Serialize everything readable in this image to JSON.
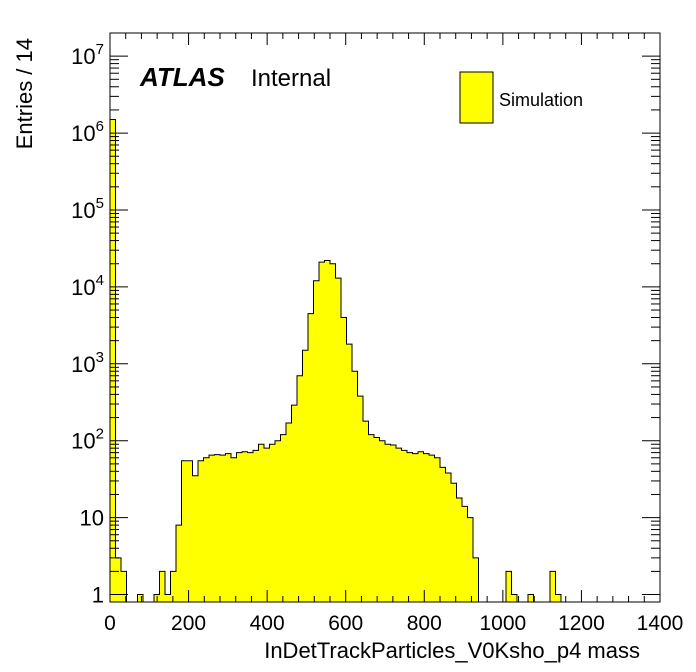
{
  "chart_data": {
    "type": "bar",
    "xlabel": "InDetTrackParticles_V0Ksho_p4 mass",
    "ylabel": "Entries / 14",
    "xlim": [
      0,
      1400
    ],
    "ylim": [
      0.8,
      20000000
    ],
    "yscale": "log",
    "bin_width": 14,
    "x_ticks": [
      "0",
      "200",
      "400",
      "600",
      "800",
      "1000",
      "1200",
      "1400"
    ],
    "y_ticks": [
      {
        "base": "1",
        "exp": "",
        "value": 1
      },
      {
        "base": "10",
        "exp": "",
        "value": 10
      },
      {
        "base": "10",
        "exp": "2",
        "value": 100
      },
      {
        "base": "10",
        "exp": "3",
        "value": 1000
      },
      {
        "base": "10",
        "exp": "4",
        "value": 10000
      },
      {
        "base": "10",
        "exp": "5",
        "value": 100000
      },
      {
        "base": "10",
        "exp": "6",
        "value": 1000000
      },
      {
        "base": "10",
        "exp": "7",
        "value": 10000000
      }
    ],
    "atlas_label": "ATLAS",
    "atlas_sublabel": "Internal",
    "series": [
      {
        "name": "Simulation",
        "color": "#ffff00",
        "bins": [
          [
            0,
            1500000
          ],
          [
            14,
            3
          ],
          [
            28,
            2
          ],
          [
            42,
            0
          ],
          [
            56,
            0
          ],
          [
            70,
            1
          ],
          [
            84,
            0
          ],
          [
            98,
            0
          ],
          [
            112,
            1
          ],
          [
            126,
            2
          ],
          [
            140,
            1
          ],
          [
            154,
            2
          ],
          [
            168,
            8
          ],
          [
            182,
            55
          ],
          [
            196,
            55
          ],
          [
            210,
            35
          ],
          [
            224,
            55
          ],
          [
            238,
            60
          ],
          [
            252,
            65
          ],
          [
            266,
            66
          ],
          [
            280,
            65
          ],
          [
            294,
            68
          ],
          [
            308,
            60
          ],
          [
            322,
            70
          ],
          [
            336,
            72
          ],
          [
            350,
            70
          ],
          [
            364,
            75
          ],
          [
            378,
            90
          ],
          [
            392,
            80
          ],
          [
            406,
            90
          ],
          [
            420,
            100
          ],
          [
            434,
            120
          ],
          [
            448,
            170
          ],
          [
            462,
            290
          ],
          [
            476,
            700
          ],
          [
            490,
            1500
          ],
          [
            504,
            4500
          ],
          [
            518,
            12000
          ],
          [
            532,
            21000
          ],
          [
            546,
            22000
          ],
          [
            560,
            20000
          ],
          [
            574,
            13000
          ],
          [
            588,
            4000
          ],
          [
            602,
            1800
          ],
          [
            616,
            800
          ],
          [
            630,
            380
          ],
          [
            644,
            180
          ],
          [
            658,
            120
          ],
          [
            672,
            110
          ],
          [
            686,
            100
          ],
          [
            700,
            90
          ],
          [
            714,
            88
          ],
          [
            728,
            80
          ],
          [
            742,
            75
          ],
          [
            756,
            70
          ],
          [
            770,
            68
          ],
          [
            784,
            72
          ],
          [
            798,
            68
          ],
          [
            812,
            65
          ],
          [
            826,
            60
          ],
          [
            840,
            45
          ],
          [
            854,
            38
          ],
          [
            868,
            28
          ],
          [
            882,
            18
          ],
          [
            896,
            14
          ],
          [
            910,
            10
          ],
          [
            924,
            3
          ],
          [
            938,
            0
          ],
          [
            952,
            0
          ],
          [
            966,
            0
          ],
          [
            980,
            0
          ],
          [
            994,
            0
          ],
          [
            1008,
            2
          ],
          [
            1022,
            1
          ],
          [
            1036,
            0
          ],
          [
            1050,
            0
          ],
          [
            1064,
            1
          ],
          [
            1078,
            0
          ],
          [
            1092,
            0
          ],
          [
            1106,
            0
          ],
          [
            1120,
            2
          ],
          [
            1134,
            1
          ],
          [
            1148,
            0
          ],
          [
            1162,
            0
          ]
        ]
      }
    ],
    "legend": {
      "position": "top-right",
      "entries": [
        "Simulation"
      ]
    },
    "grid": false
  }
}
